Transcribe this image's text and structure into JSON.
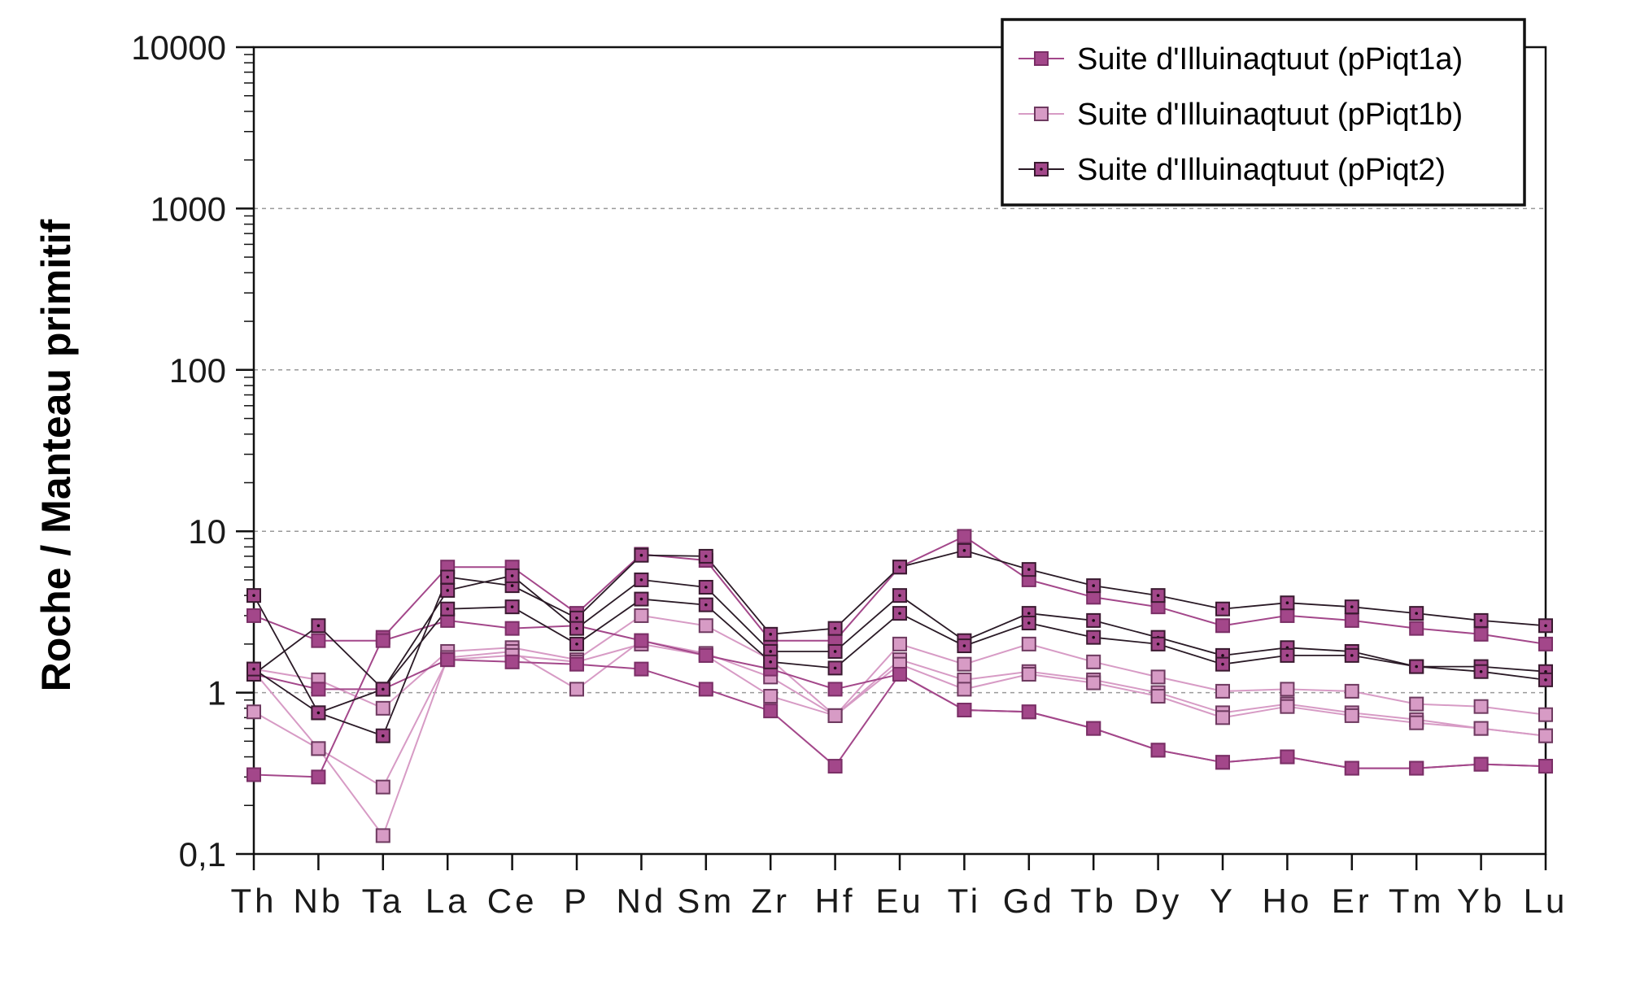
{
  "chart_data": {
    "type": "line",
    "ylabel": "Roche / Manteau primitif",
    "xlabel": "",
    "y_scale": "log",
    "ylim": [
      0.1,
      10000
    ],
    "y_ticks": [
      {
        "value": 0.1,
        "label": "0,1"
      },
      {
        "value": 1,
        "label": "1"
      },
      {
        "value": 10,
        "label": "10"
      },
      {
        "value": 100,
        "label": "100"
      },
      {
        "value": 1000,
        "label": "1000"
      },
      {
        "value": 10000,
        "label": "10000"
      }
    ],
    "grid": "horizontal dashed at decades",
    "legend_position": "top-right",
    "categories": [
      "Th",
      "Nb",
      "Ta",
      "La",
      "Ce",
      "P",
      "Nd",
      "Sm",
      "Zr",
      "Hf",
      "Eu",
      "Ti",
      "Gd",
      "Tb",
      "Dy",
      "Y",
      "Ho",
      "Er",
      "Tm",
      "Yb",
      "Lu"
    ],
    "legend": [
      {
        "label": "Suite d'Illuinaqtuut (pPiqt1a)",
        "line_color": "#a3478a",
        "marker_fill": "#a3478a",
        "marker_edge": "#7a2f66",
        "dotted": false
      },
      {
        "label": "Suite d'Illuinaqtuut (pPiqt1b)",
        "line_color": "#d79bc5",
        "marker_fill": "#d79bc5",
        "marker_edge": "#6e3a60",
        "dotted": false
      },
      {
        "label": "Suite d'Illuinaqtuut (pPiqt2)",
        "line_color": "#2a1a26",
        "marker_fill": "#a3478a",
        "marker_edge": "#3a1a30",
        "dotted": true
      }
    ],
    "series": [
      {
        "group": 0,
        "values": [
          0.31,
          0.3,
          2.2,
          6,
          6,
          3.1,
          7.2,
          6.6,
          2.1,
          2.1,
          6,
          9.3,
          5,
          3.9,
          3.4,
          2.6,
          3,
          2.8,
          2.5,
          2.3,
          2
        ]
      },
      {
        "group": 0,
        "values": [
          3,
          2.1,
          2.1,
          2.8,
          2.5,
          2.6,
          2.1,
          1.7,
          1.4,
          1.05,
          1.3,
          0.78,
          0.76,
          0.6,
          0.44,
          0.37,
          0.4,
          0.34,
          0.34,
          0.36,
          0.35
        ]
      },
      {
        "group": 0,
        "values": [
          1.3,
          1.05,
          1.05,
          1.6,
          1.55,
          1.5,
          1.4,
          1.05,
          0.77,
          0.35,
          1.3,
          0.78,
          0.76,
          0.6,
          0.44,
          0.37,
          0.4,
          0.34,
          0.34,
          0.36,
          0.35
        ]
      },
      {
        "group": 1,
        "values": [
          1.4,
          1.2,
          0.8,
          1.8,
          1.9,
          1.6,
          3,
          2.6,
          1.6,
          0.72,
          2,
          1.5,
          2,
          1.55,
          1.25,
          1.02,
          1.05,
          1.02,
          0.85,
          0.82,
          0.73
        ]
      },
      {
        "group": 1,
        "values": [
          0.76,
          0.45,
          0.13,
          1.65,
          1.8,
          1.05,
          2.1,
          1.75,
          1.25,
          0.72,
          1.6,
          1.2,
          1.35,
          1.2,
          1,
          0.75,
          0.85,
          0.75,
          0.68,
          0.6,
          0.54
        ]
      },
      {
        "group": 1,
        "values": [
          1.35,
          0.45,
          0.26,
          1.6,
          1.7,
          1.55,
          2,
          1.7,
          0.95,
          0.72,
          1.5,
          1.05,
          1.3,
          1.15,
          0.95,
          0.7,
          0.82,
          0.72,
          0.65,
          0.6,
          0.54
        ]
      },
      {
        "group": 2,
        "values": [
          4,
          0.75,
          0.54,
          5.2,
          4.6,
          2.9,
          7.1,
          7,
          2.3,
          2.5,
          6,
          7.6,
          5.8,
          4.6,
          4,
          3.3,
          3.6,
          3.4,
          3.1,
          2.8,
          2.6
        ]
      },
      {
        "group": 2,
        "values": [
          1.3,
          2.6,
          1.05,
          4.3,
          5.3,
          2.5,
          5,
          4.5,
          1.8,
          1.8,
          4,
          2.1,
          3.1,
          2.8,
          2.2,
          1.7,
          1.9,
          1.8,
          1.45,
          1.45,
          1.35
        ]
      },
      {
        "group": 2,
        "values": [
          1.4,
          0.75,
          1.05,
          3.3,
          3.4,
          2,
          3.8,
          3.5,
          1.55,
          1.42,
          3.1,
          1.95,
          2.7,
          2.2,
          2,
          1.5,
          1.7,
          1.7,
          1.45,
          1.35,
          1.2
        ]
      }
    ]
  }
}
